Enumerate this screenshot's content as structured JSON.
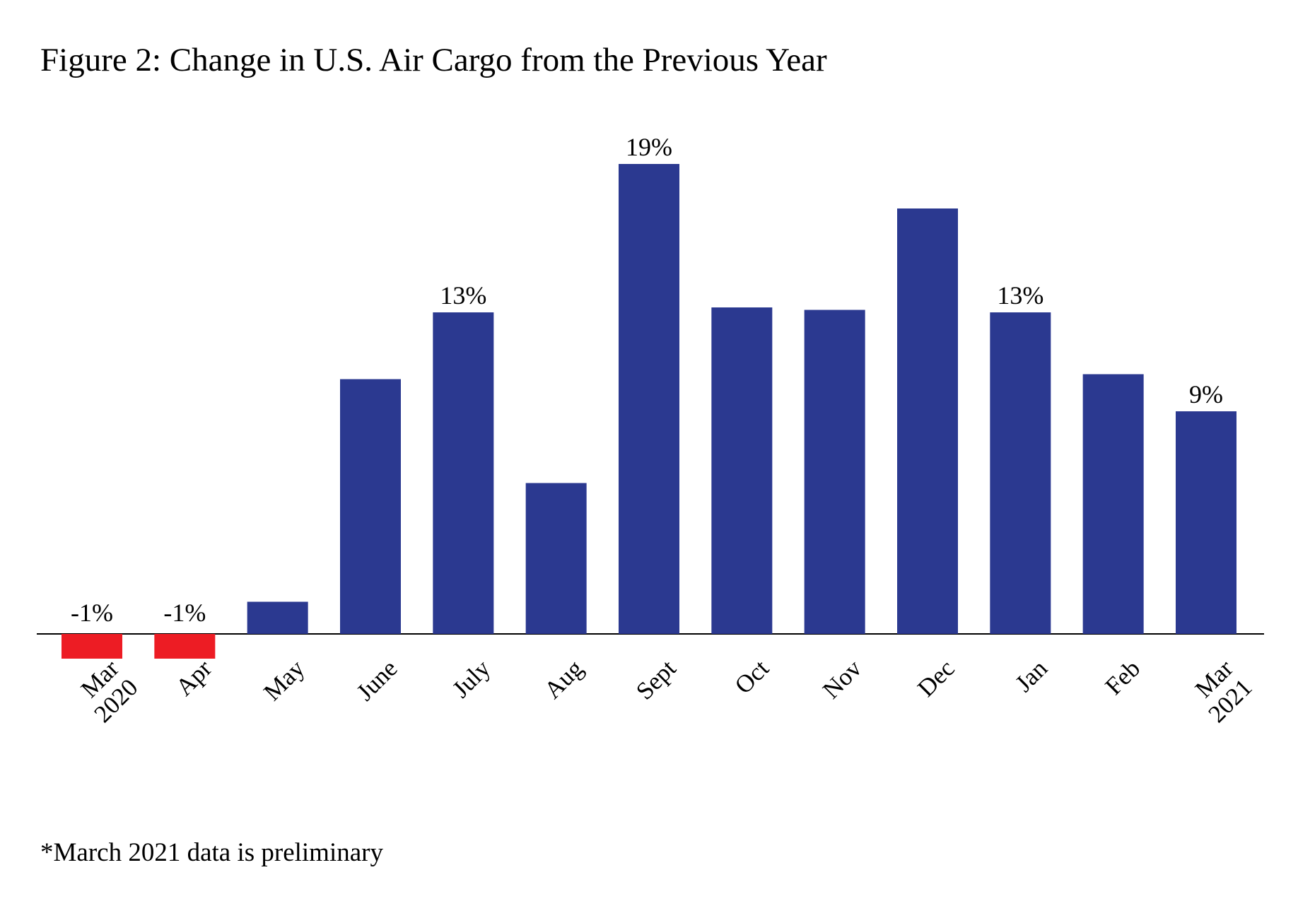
{
  "chart_data": {
    "type": "bar",
    "title": "Figure 2: Change in U.S. Air Cargo from the Previous Year",
    "note": "*March 2021 data is preliminary",
    "categories": [
      [
        "Mar",
        "2020"
      ],
      [
        "Apr"
      ],
      [
        "May"
      ],
      [
        "June"
      ],
      [
        "July"
      ],
      [
        "Aug"
      ],
      [
        "Sept"
      ],
      [
        "Oct"
      ],
      [
        "Nov"
      ],
      [
        "Dec"
      ],
      [
        "Jan"
      ],
      [
        "Feb"
      ],
      [
        "Mar",
        "2021"
      ]
    ],
    "values": [
      -1,
      -1,
      1.3,
      10.3,
      13,
      6.1,
      19,
      13.2,
      13.1,
      17.2,
      13,
      10.5,
      9
    ],
    "data_labels": [
      "-1%",
      "-1%",
      "",
      "",
      "13%",
      "",
      "19%",
      "",
      "",
      "",
      "13%",
      "",
      "9%"
    ],
    "positive_color": "#2b3990",
    "negative_color": "#ed1c24",
    "ylim": [
      -2,
      20
    ],
    "xlabel": "",
    "ylabel": "",
    "grid": false,
    "legend": "none"
  }
}
